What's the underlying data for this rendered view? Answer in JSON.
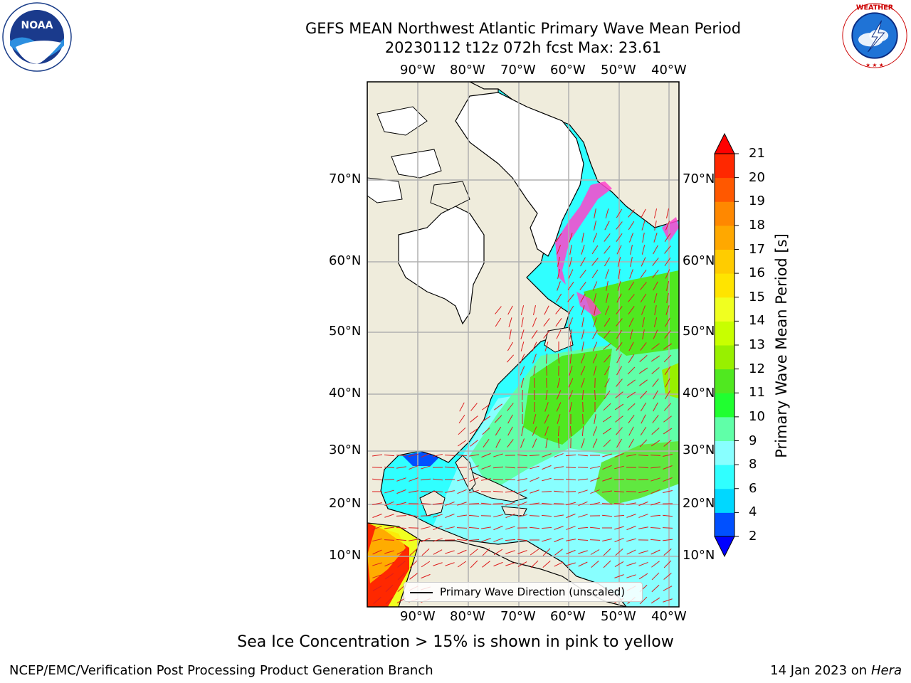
{
  "title": {
    "line1": "GEFS MEAN Northwest Atlantic Primary Wave Mean Period",
    "line2": "20230112 t12z 072h fcst   Max: 23.61"
  },
  "logos": {
    "left": {
      "name": "NOAA",
      "icon": "noaa-logo"
    },
    "right": {
      "name": "NATIONAL WEATHER SERVICE",
      "icon": "nws-logo"
    }
  },
  "map": {
    "lon_labels": [
      "90°W",
      "80°W",
      "70°W",
      "60°W",
      "50°W",
      "40°W"
    ],
    "lat_labels": [
      "70°N",
      "60°N",
      "50°N",
      "40°N",
      "30°N",
      "20°N",
      "10°N"
    ],
    "colors": {
      "land": "#efecdc",
      "ice_land": "#ffffff",
      "grid": "#b0b0b0",
      "arrow": "#dd1c1c"
    }
  },
  "legend": {
    "label": "Primary Wave Direction (unscaled)"
  },
  "colorbar": {
    "label": "Primary Wave Mean Period [s]",
    "ticks": [
      "21",
      "20",
      "19",
      "18",
      "17",
      "16",
      "15",
      "14",
      "13",
      "12",
      "11",
      "10",
      "9",
      "8",
      "6",
      "4",
      "2"
    ],
    "colors_bottom_to_top": [
      "#0050ff",
      "#00d8ff",
      "#30ffff",
      "#88ffff",
      "#60ffa8",
      "#20ff30",
      "#50e820",
      "#98f000",
      "#c8ff00",
      "#f0ff20",
      "#ffe400",
      "#ffcc00",
      "#ffa800",
      "#ff8800",
      "#ff5800",
      "#ff2800"
    ],
    "under_color": "#0000ff",
    "over_color": "#ff0000"
  },
  "caption": "Sea Ice Concentration > 15% is shown in pink to yellow",
  "footer": {
    "left": "NCEP/EMC/Verification Post Processing Product Generation Branch",
    "date": "14 Jan 2023 on",
    "host": "Hera"
  }
}
